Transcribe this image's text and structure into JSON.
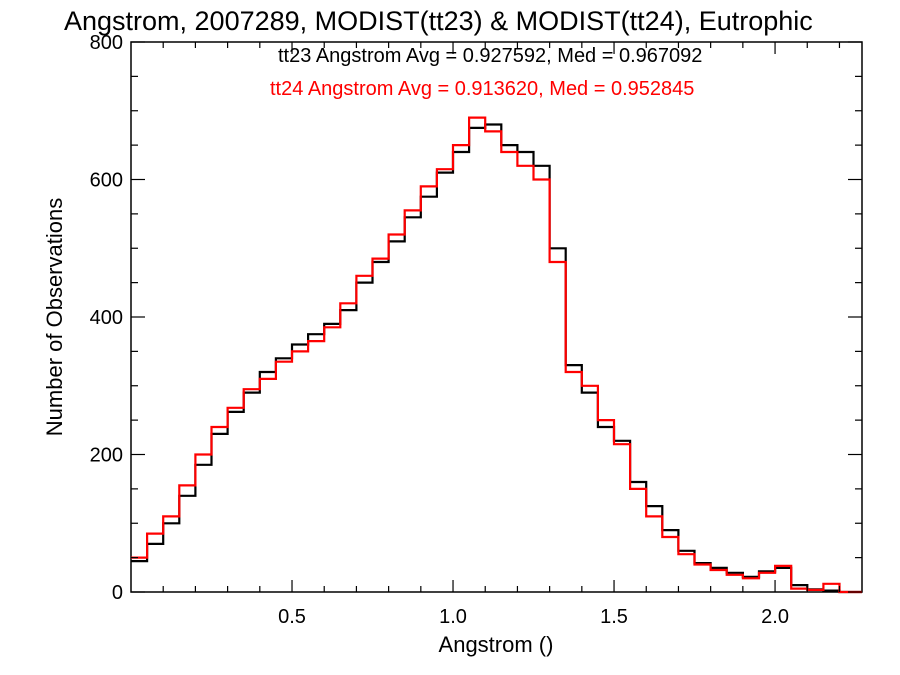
{
  "chart_data": {
    "type": "line",
    "title": "Angstrom, 2007289, MODIST(tt23) & MODIST(tt24), Eutrophic",
    "xlabel": "Angstrom ()",
    "ylabel": "Number of Observations",
    "xlim": [
      0.0,
      2.27
    ],
    "ylim": [
      0,
      800
    ],
    "x_ticks": [
      0.5,
      1.0,
      1.5,
      2.0
    ],
    "x_tick_labels": [
      "0.5",
      "1.0",
      "1.5",
      "2.0"
    ],
    "y_ticks": [
      0,
      200,
      400,
      600,
      800
    ],
    "y_tick_labels": [
      "0",
      "200",
      "400",
      "600",
      "800"
    ],
    "grid": false,
    "step": true,
    "legend": [
      {
        "text": "tt23 Angstrom Avg = 0.927592, Med = 0.967092",
        "color": "#000000"
      },
      {
        "text": "tt24 Angstrom Avg = 0.913620, Med = 0.952845",
        "color": "#ff0000"
      }
    ],
    "x": [
      0.0,
      0.05,
      0.1,
      0.15,
      0.2,
      0.25,
      0.3,
      0.35,
      0.4,
      0.45,
      0.5,
      0.55,
      0.6,
      0.65,
      0.7,
      0.75,
      0.8,
      0.85,
      0.9,
      0.95,
      1.0,
      1.05,
      1.1,
      1.15,
      1.2,
      1.25,
      1.3,
      1.35,
      1.4,
      1.45,
      1.5,
      1.55,
      1.6,
      1.65,
      1.7,
      1.75,
      1.8,
      1.85,
      1.9,
      1.95,
      2.0,
      2.05,
      2.1,
      2.15,
      2.2,
      2.27
    ],
    "series": [
      {
        "name": "tt23",
        "color": "#000000",
        "values": [
          45,
          70,
          100,
          140,
          185,
          230,
          262,
          290,
          320,
          340,
          360,
          375,
          390,
          410,
          450,
          480,
          510,
          545,
          575,
          610,
          640,
          675,
          680,
          650,
          640,
          620,
          500,
          330,
          290,
          240,
          220,
          160,
          125,
          90,
          60,
          42,
          35,
          28,
          22,
          30,
          35,
          10,
          4,
          2,
          0,
          0
        ]
      },
      {
        "name": "tt24",
        "color": "#ff0000",
        "values": [
          50,
          85,
          110,
          155,
          200,
          240,
          268,
          295,
          310,
          335,
          350,
          365,
          385,
          420,
          460,
          485,
          520,
          555,
          590,
          615,
          650,
          690,
          670,
          640,
          620,
          600,
          480,
          320,
          300,
          250,
          215,
          150,
          110,
          80,
          55,
          40,
          32,
          25,
          20,
          28,
          38,
          5,
          3,
          12,
          0,
          0
        ]
      }
    ]
  }
}
